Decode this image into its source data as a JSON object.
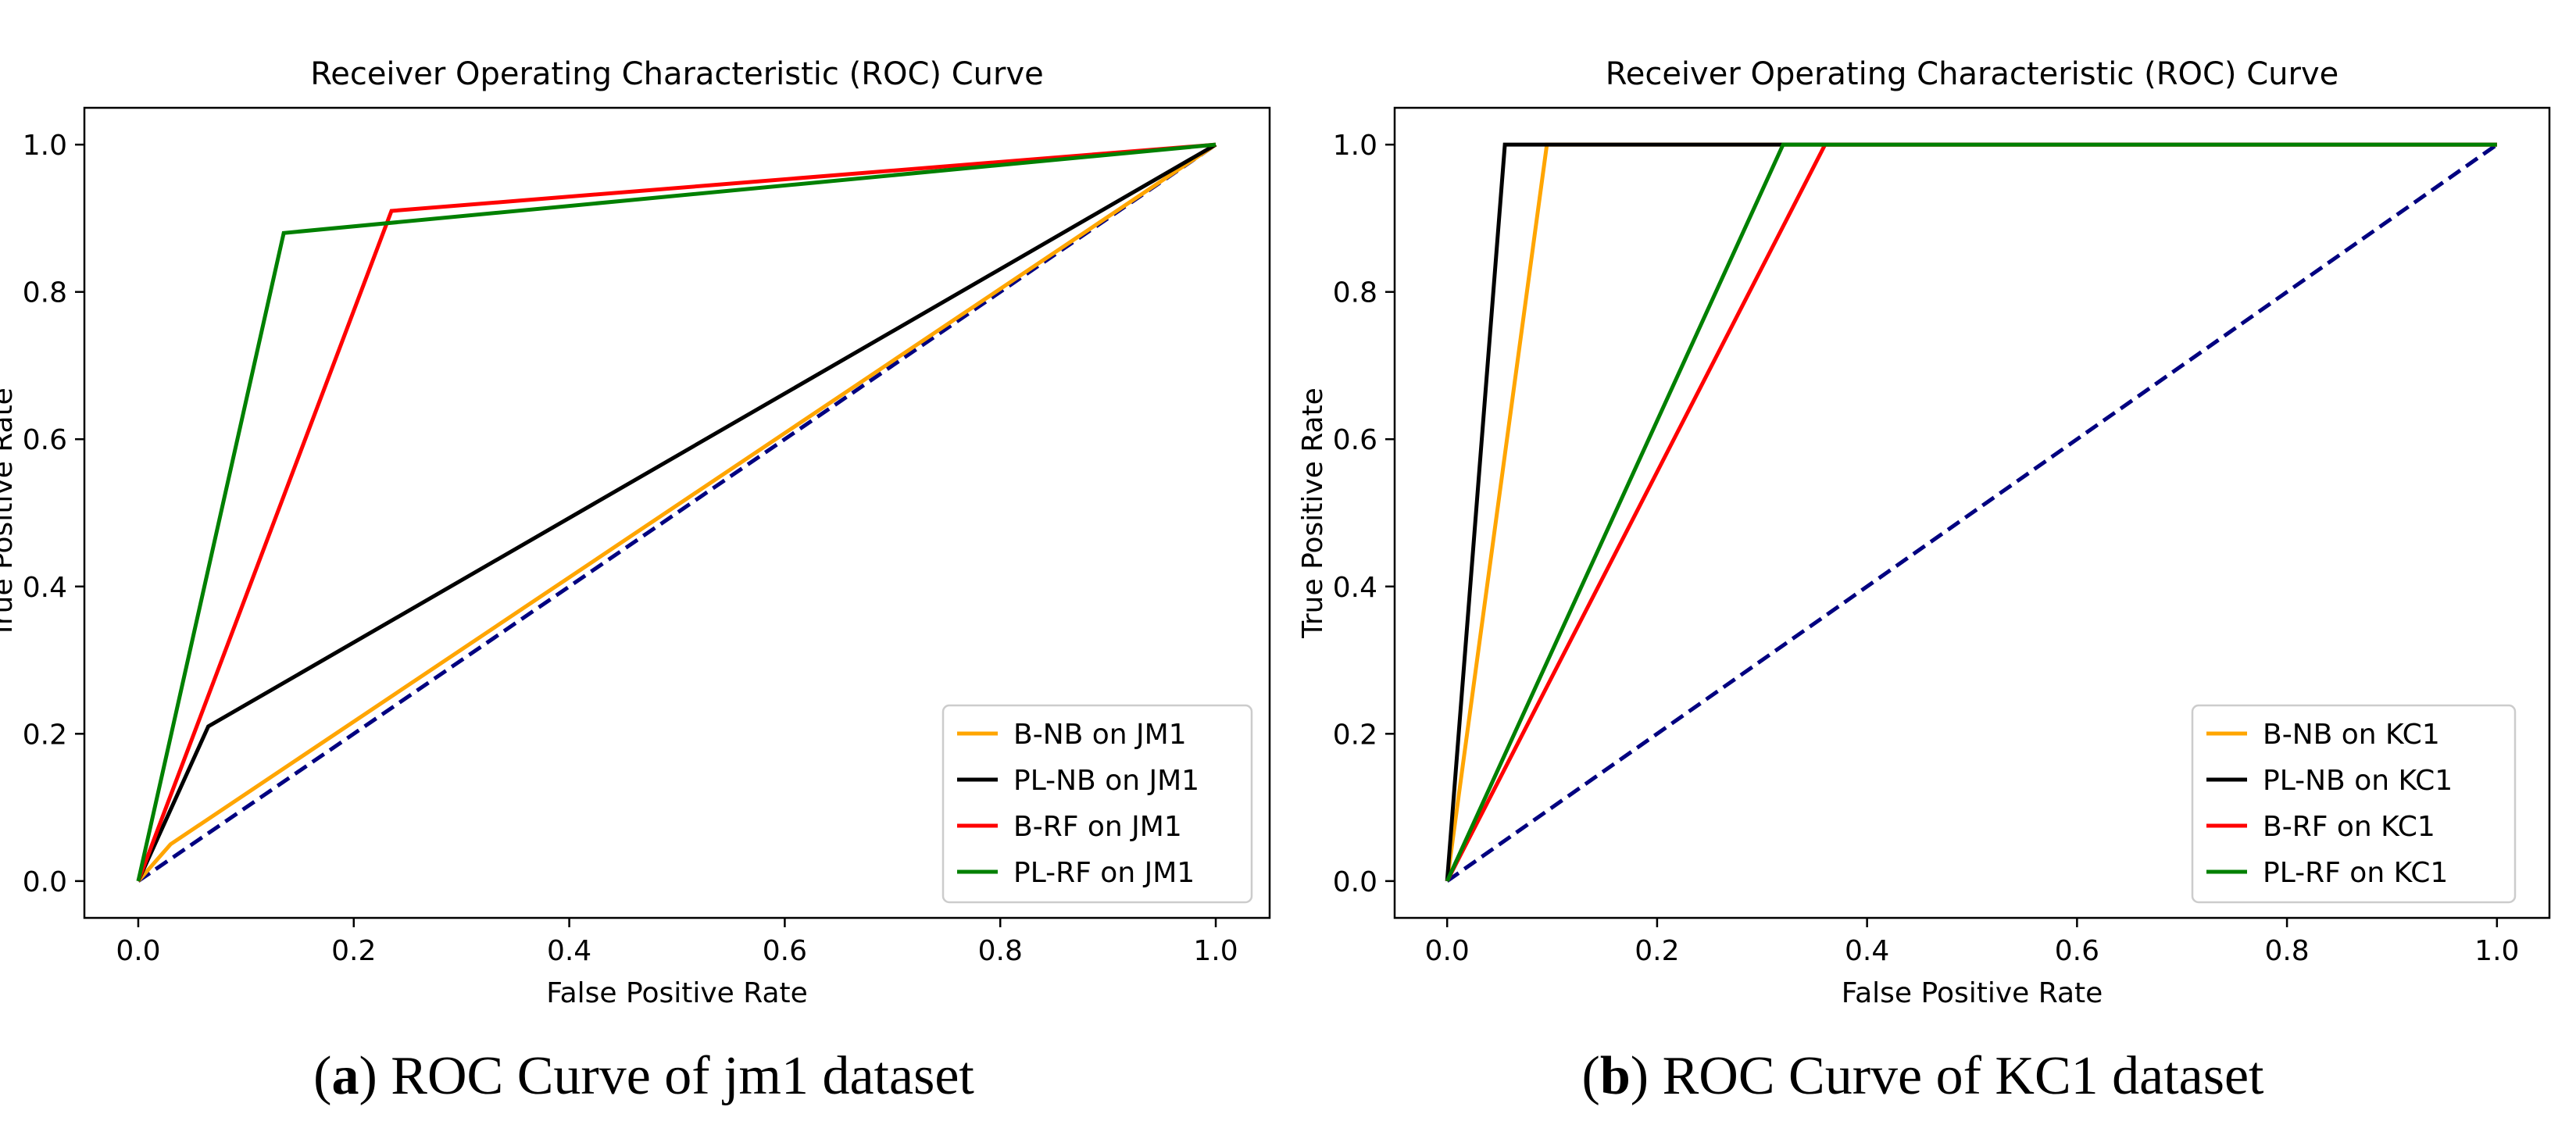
{
  "figure": {
    "captions": [
      {
        "letter": "a",
        "text": "ROC Curve of jm1 dataset"
      },
      {
        "letter": "b",
        "text": "ROC Curve of KC1 dataset"
      }
    ]
  },
  "chart_data": [
    {
      "type": "line",
      "title": "Receiver Operating Characteristic (ROC) Curve",
      "xlabel": "False Positive Rate",
      "ylabel": "True Positive Rate",
      "xlim": [
        -0.05,
        1.05
      ],
      "ylim": [
        -0.05,
        1.05
      ],
      "xticks": [
        0.0,
        0.2,
        0.4,
        0.6,
        0.8,
        1.0
      ],
      "xtick_labels": [
        "0.0",
        "0.2",
        "0.4",
        "0.6",
        "0.8",
        "1.0"
      ],
      "yticks": [
        0.0,
        0.2,
        0.4,
        0.6,
        0.8,
        1.0
      ],
      "ytick_labels": [
        "0.0",
        "0.2",
        "0.4",
        "0.6",
        "0.8",
        "1.0"
      ],
      "legend_position": "lower-right",
      "series": [
        {
          "name": "B-NB on JM1",
          "color": "#ffa500",
          "x": [
            0,
            0.03,
            1
          ],
          "y": [
            0,
            0.05,
            1
          ]
        },
        {
          "name": "PL-NB on JM1",
          "color": "#000000",
          "x": [
            0,
            0.065,
            1
          ],
          "y": [
            0,
            0.21,
            1
          ]
        },
        {
          "name": "B-RF on JM1",
          "color": "#ff0000",
          "x": [
            0,
            0.235,
            1
          ],
          "y": [
            0,
            0.91,
            1
          ]
        },
        {
          "name": "PL-RF on JM1",
          "color": "#008000",
          "x": [
            0,
            0.135,
            1
          ],
          "y": [
            0,
            0.88,
            1
          ]
        }
      ],
      "reference": {
        "color": "#000080",
        "style": "dashed",
        "x": [
          0,
          1
        ],
        "y": [
          0,
          1
        ]
      }
    },
    {
      "type": "line",
      "title": "Receiver Operating Characteristic (ROC) Curve",
      "xlabel": "False Positive Rate",
      "ylabel": "True Positive Rate",
      "xlim": [
        -0.05,
        1.05
      ],
      "ylim": [
        -0.05,
        1.05
      ],
      "xticks": [
        0.0,
        0.2,
        0.4,
        0.6,
        0.8,
        1.0
      ],
      "xtick_labels": [
        "0.0",
        "0.2",
        "0.4",
        "0.6",
        "0.8",
        "1.0"
      ],
      "yticks": [
        0.0,
        0.2,
        0.4,
        0.6,
        0.8,
        1.0
      ],
      "ytick_labels": [
        "0.0",
        "0.2",
        "0.4",
        "0.6",
        "0.8",
        "1.0"
      ],
      "legend_position": "lower-right",
      "series": [
        {
          "name": "B-NB on KC1",
          "color": "#ffa500",
          "x": [
            0,
            0.095,
            1
          ],
          "y": [
            0,
            1.0,
            1
          ]
        },
        {
          "name": "PL-NB on KC1",
          "color": "#000000",
          "x": [
            0,
            0.055,
            1
          ],
          "y": [
            0,
            1.0,
            1
          ]
        },
        {
          "name": "B-RF on KC1",
          "color": "#ff0000",
          "x": [
            0,
            0.36,
            1
          ],
          "y": [
            0,
            1.0,
            1
          ]
        },
        {
          "name": "PL-RF on KC1",
          "color": "#008000",
          "x": [
            0,
            0.32,
            1
          ],
          "y": [
            0,
            1.0,
            1
          ]
        }
      ],
      "reference": {
        "color": "#000080",
        "style": "dashed",
        "x": [
          0,
          1
        ],
        "y": [
          0,
          1
        ]
      }
    }
  ]
}
